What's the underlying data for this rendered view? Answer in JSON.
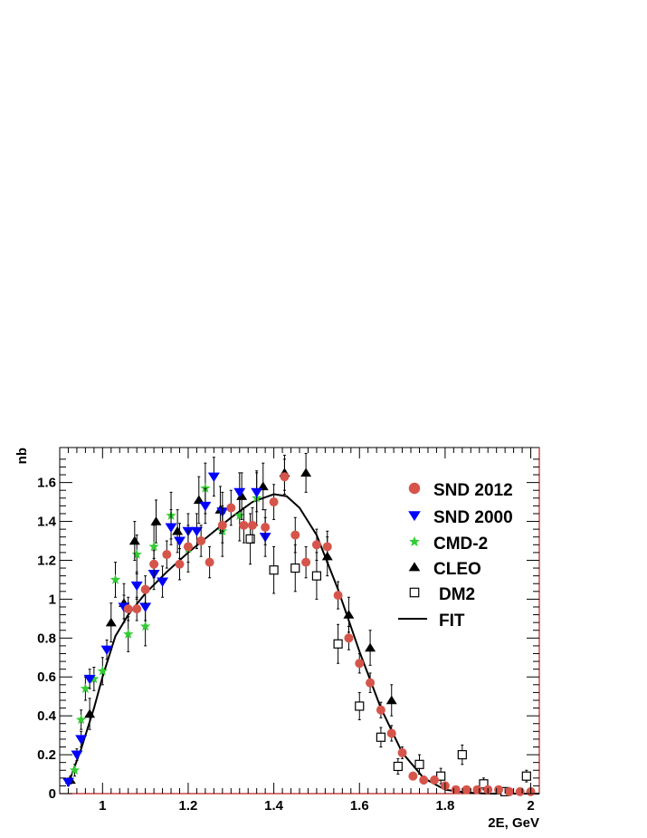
{
  "chart_data": {
    "type": "scatter",
    "xlabel": "2E, GeV",
    "ylabel": "nb",
    "xlim": [
      0.9,
      2.02
    ],
    "ylim": [
      0,
      1.78
    ],
    "x_ticks": [
      {
        "value": 1,
        "label": "1"
      },
      {
        "value": 1.2,
        "label": "1.2"
      },
      {
        "value": 1.4,
        "label": "1.4"
      },
      {
        "value": 1.6,
        "label": "1.6"
      },
      {
        "value": 1.8,
        "label": "1.8"
      },
      {
        "value": 2,
        "label": "2"
      }
    ],
    "y_ticks": [
      {
        "value": 0,
        "label": "0"
      },
      {
        "value": 0.2,
        "label": "0.2"
      },
      {
        "value": 0.4,
        "label": "0.4"
      },
      {
        "value": 0.6,
        "label": "0.6"
      },
      {
        "value": 0.8,
        "label": "0.8"
      },
      {
        "value": 1,
        "label": "1"
      },
      {
        "value": 1.2,
        "label": "1.2"
      },
      {
        "value": 1.4,
        "label": "1.4"
      },
      {
        "value": 1.6,
        "label": "1.6"
      }
    ],
    "legend_position": "top-right",
    "grid": false,
    "series": [
      {
        "name": "SND 2012",
        "marker": "circle",
        "color": "#d6554b",
        "points": [
          {
            "x": 1.06,
            "y": 0.95,
            "e": 0.06
          },
          {
            "x": 1.08,
            "y": 0.95,
            "e": 0.06
          },
          {
            "x": 1.1,
            "y": 1.05,
            "e": 0.07
          },
          {
            "x": 1.12,
            "y": 1.18,
            "e": 0.07
          },
          {
            "x": 1.15,
            "y": 1.23,
            "e": 0.07
          },
          {
            "x": 1.18,
            "y": 1.18,
            "e": 0.08
          },
          {
            "x": 1.2,
            "y": 1.27,
            "e": 0.08
          },
          {
            "x": 1.23,
            "y": 1.3,
            "e": 0.08
          },
          {
            "x": 1.25,
            "y": 1.19,
            "e": 0.08
          },
          {
            "x": 1.28,
            "y": 1.38,
            "e": 0.09
          },
          {
            "x": 1.3,
            "y": 1.47,
            "e": 0.09
          },
          {
            "x": 1.33,
            "y": 1.38,
            "e": 0.09
          },
          {
            "x": 1.35,
            "y": 1.38,
            "e": 0.09
          },
          {
            "x": 1.38,
            "y": 1.37,
            "e": 0.09
          },
          {
            "x": 1.4,
            "y": 1.5,
            "e": 0.09
          },
          {
            "x": 1.425,
            "y": 1.63,
            "e": 0.09
          },
          {
            "x": 1.45,
            "y": 1.33,
            "e": 0.09
          },
          {
            "x": 1.475,
            "y": 1.19,
            "e": 0.08
          },
          {
            "x": 1.5,
            "y": 1.28,
            "e": 0.08
          },
          {
            "x": 1.525,
            "y": 1.27,
            "e": 0.08
          },
          {
            "x": 1.55,
            "y": 1.02,
            "e": 0.07
          },
          {
            "x": 1.575,
            "y": 0.8,
            "e": 0.06
          },
          {
            "x": 1.6,
            "y": 0.67,
            "e": 0.05
          },
          {
            "x": 1.625,
            "y": 0.57,
            "e": 0.05
          },
          {
            "x": 1.65,
            "y": 0.43,
            "e": 0.04
          },
          {
            "x": 1.675,
            "y": 0.31,
            "e": 0.04
          },
          {
            "x": 1.7,
            "y": 0.21,
            "e": 0.03
          },
          {
            "x": 1.725,
            "y": 0.09,
            "e": 0.02
          },
          {
            "x": 1.75,
            "y": 0.07,
            "e": 0.02
          },
          {
            "x": 1.775,
            "y": 0.07,
            "e": 0.02
          },
          {
            "x": 1.8,
            "y": 0.04,
            "e": 0.015
          },
          {
            "x": 1.825,
            "y": 0.02,
            "e": 0.01
          },
          {
            "x": 1.85,
            "y": 0.02,
            "e": 0.01
          },
          {
            "x": 1.875,
            "y": 0.02,
            "e": 0.01
          },
          {
            "x": 1.9,
            "y": 0.02,
            "e": 0.01
          },
          {
            "x": 1.925,
            "y": 0.02,
            "e": 0.01
          },
          {
            "x": 1.95,
            "y": 0.01,
            "e": 0.01
          },
          {
            "x": 1.975,
            "y": 0.01,
            "e": 0.01
          },
          {
            "x": 2.0,
            "y": 0.01,
            "e": 0.01
          }
        ]
      },
      {
        "name": "SND 2000",
        "marker": "triangle-down",
        "color": "#0000ff",
        "points": [
          {
            "x": 0.92,
            "y": 0.06,
            "e": 0.02
          },
          {
            "x": 0.94,
            "y": 0.2,
            "e": 0.03
          },
          {
            "x": 0.95,
            "y": 0.28,
            "e": 0.04
          },
          {
            "x": 0.97,
            "y": 0.59,
            "e": 0.05
          },
          {
            "x": 1.01,
            "y": 0.74,
            "e": 0.05
          },
          {
            "x": 1.05,
            "y": 0.96,
            "e": 0.06
          },
          {
            "x": 1.08,
            "y": 1.07,
            "e": 0.07
          },
          {
            "x": 1.1,
            "y": 0.96,
            "e": 0.07
          },
          {
            "x": 1.12,
            "y": 1.13,
            "e": 0.08
          },
          {
            "x": 1.14,
            "y": 1.09,
            "e": 0.08
          },
          {
            "x": 1.16,
            "y": 1.37,
            "e": 0.09
          },
          {
            "x": 1.18,
            "y": 1.3,
            "e": 0.09
          },
          {
            "x": 1.2,
            "y": 1.35,
            "e": 0.09
          },
          {
            "x": 1.22,
            "y": 1.35,
            "e": 0.09
          },
          {
            "x": 1.24,
            "y": 1.48,
            "e": 0.09
          },
          {
            "x": 1.26,
            "y": 1.63,
            "e": 0.1
          },
          {
            "x": 1.28,
            "y": 1.45,
            "e": 0.1
          },
          {
            "x": 1.32,
            "y": 1.55,
            "e": 0.1
          },
          {
            "x": 1.36,
            "y": 1.55,
            "e": 0.1
          },
          {
            "x": 1.38,
            "y": 1.32,
            "e": 0.1
          }
        ]
      },
      {
        "name": "CMD-2",
        "marker": "star",
        "color": "#33cc33",
        "points": [
          {
            "x": 0.935,
            "y": 0.12,
            "e": 0.03
          },
          {
            "x": 0.95,
            "y": 0.38,
            "e": 0.05
          },
          {
            "x": 0.96,
            "y": 0.54,
            "e": 0.06
          },
          {
            "x": 0.98,
            "y": 0.59,
            "e": 0.06
          },
          {
            "x": 1.0,
            "y": 0.63,
            "e": 0.07
          },
          {
            "x": 1.03,
            "y": 1.1,
            "e": 0.09
          },
          {
            "x": 1.06,
            "y": 0.82,
            "e": 0.09
          },
          {
            "x": 1.08,
            "y": 1.23,
            "e": 0.1
          },
          {
            "x": 1.1,
            "y": 0.86,
            "e": 0.1
          },
          {
            "x": 1.12,
            "y": 1.27,
            "e": 0.11
          },
          {
            "x": 1.16,
            "y": 1.43,
            "e": 0.12
          },
          {
            "x": 1.2,
            "y": 1.26,
            "e": 0.12
          },
          {
            "x": 1.24,
            "y": 1.57,
            "e": 0.13
          },
          {
            "x": 1.28,
            "y": 1.35,
            "e": 0.13
          },
          {
            "x": 1.32,
            "y": 1.43,
            "e": 0.13
          },
          {
            "x": 1.36,
            "y": 1.52,
            "e": 0.14
          }
        ]
      },
      {
        "name": "CLEO",
        "marker": "triangle-up",
        "color": "#000000",
        "points": [
          {
            "x": 0.925,
            "y": 0.07,
            "e": 0.02
          },
          {
            "x": 0.97,
            "y": 0.41,
            "e": 0.08
          },
          {
            "x": 1.02,
            "y": 0.88,
            "e": 0.1
          },
          {
            "x": 1.05,
            "y": 0.98,
            "e": 0.1
          },
          {
            "x": 1.075,
            "y": 1.3,
            "e": 0.1
          },
          {
            "x": 1.125,
            "y": 1.4,
            "e": 0.11
          },
          {
            "x": 1.175,
            "y": 1.35,
            "e": 0.11
          },
          {
            "x": 1.225,
            "y": 1.51,
            "e": 0.12
          },
          {
            "x": 1.275,
            "y": 1.46,
            "e": 0.12
          },
          {
            "x": 1.325,
            "y": 1.53,
            "e": 0.12
          },
          {
            "x": 1.375,
            "y": 1.58,
            "e": 0.12
          },
          {
            "x": 1.425,
            "y": 1.65,
            "e": 0.09
          },
          {
            "x": 1.475,
            "y": 1.65,
            "e": 0.1
          },
          {
            "x": 1.525,
            "y": 1.22,
            "e": 0.1
          },
          {
            "x": 1.575,
            "y": 0.92,
            "e": 0.09
          },
          {
            "x": 1.625,
            "y": 0.75,
            "e": 0.09
          },
          {
            "x": 1.675,
            "y": 0.48,
            "e": 0.08
          }
        ]
      },
      {
        "name": "DM2",
        "marker": "square-open",
        "color": "#000000",
        "points": [
          {
            "x": 1.345,
            "y": 1.31,
            "e": 0.13
          },
          {
            "x": 1.4,
            "y": 1.15,
            "e": 0.12
          },
          {
            "x": 1.45,
            "y": 1.16,
            "e": 0.12
          },
          {
            "x": 1.5,
            "y": 1.12,
            "e": 0.12
          },
          {
            "x": 1.55,
            "y": 0.77,
            "e": 0.1
          },
          {
            "x": 1.6,
            "y": 0.45,
            "e": 0.07
          },
          {
            "x": 1.65,
            "y": 0.29,
            "e": 0.05
          },
          {
            "x": 1.69,
            "y": 0.14,
            "e": 0.04
          },
          {
            "x": 1.74,
            "y": 0.15,
            "e": 0.05
          },
          {
            "x": 1.79,
            "y": 0.09,
            "e": 0.04
          },
          {
            "x": 1.84,
            "y": 0.2,
            "e": 0.05
          },
          {
            "x": 1.89,
            "y": 0.05,
            "e": 0.03
          },
          {
            "x": 1.94,
            "y": 0.01,
            "e": 0.02
          },
          {
            "x": 1.99,
            "y": 0.09,
            "e": 0.03
          }
        ]
      },
      {
        "name": "FIT",
        "marker": "line",
        "color": "#000000",
        "points": [
          {
            "x": 0.92,
            "y": 0.05
          },
          {
            "x": 0.95,
            "y": 0.23
          },
          {
            "x": 0.98,
            "y": 0.44
          },
          {
            "x": 1.0,
            "y": 0.6
          },
          {
            "x": 1.03,
            "y": 0.81
          },
          {
            "x": 1.06,
            "y": 0.92
          },
          {
            "x": 1.1,
            "y": 1.03
          },
          {
            "x": 1.15,
            "y": 1.14
          },
          {
            "x": 1.2,
            "y": 1.24
          },
          {
            "x": 1.25,
            "y": 1.33
          },
          {
            "x": 1.3,
            "y": 1.42
          },
          {
            "x": 1.35,
            "y": 1.5
          },
          {
            "x": 1.4,
            "y": 1.54
          },
          {
            "x": 1.43,
            "y": 1.53
          },
          {
            "x": 1.46,
            "y": 1.47
          },
          {
            "x": 1.5,
            "y": 1.33
          },
          {
            "x": 1.55,
            "y": 1.05
          },
          {
            "x": 1.6,
            "y": 0.73
          },
          {
            "x": 1.65,
            "y": 0.44
          },
          {
            "x": 1.7,
            "y": 0.21
          },
          {
            "x": 1.75,
            "y": 0.08
          },
          {
            "x": 1.8,
            "y": 0.02
          },
          {
            "x": 1.85,
            "y": 0.005
          },
          {
            "x": 1.9,
            "y": 0.0
          },
          {
            "x": 2.02,
            "y": 0.0
          }
        ]
      }
    ]
  }
}
